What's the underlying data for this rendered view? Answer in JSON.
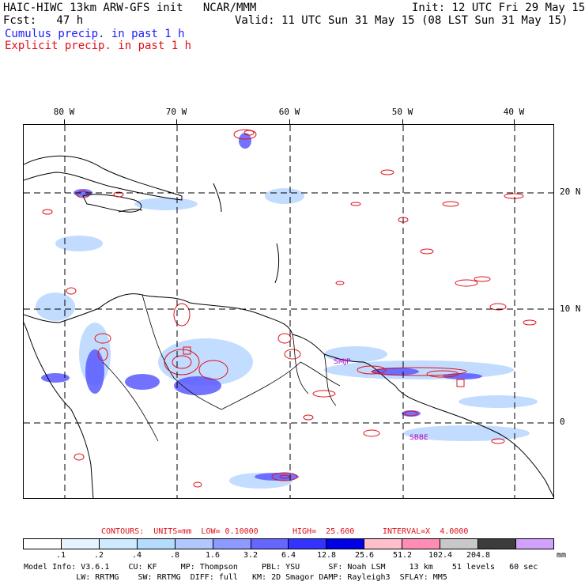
{
  "header": {
    "title": "HAIC-HIWC 13km ARW-GFS init   NCAR/MMM",
    "init": "Init: 12 UTC Fri 29 May 15",
    "fcst": "Fcst:   47 h",
    "valid": "Valid: 11 UTC Sun 31 May 15 (08 LST Sun 31 May 15)",
    "cumulus": "Cumulus precip. in past 1 h",
    "explicit": "Explicit precip. in past 1 h"
  },
  "map": {
    "lon_labels": [
      "80 W",
      "70 W",
      "60 W",
      "50 W",
      "40 W"
    ],
    "lat_labels": [
      "20 N",
      "10 N",
      "0"
    ],
    "station_labels": [
      "SMJP",
      "SBBE"
    ]
  },
  "contours": {
    "label": "CONTOURS:  UNITS=mm  LOW= 0.10000",
    "high": "HIGH=  25.600",
    "interval": "INTERVAL=X  4.0000"
  },
  "scale": {
    "labels": [
      ".1",
      ".2",
      ".4",
      ".8",
      "1.6",
      "3.2",
      "6.4",
      "12.8",
      "25.6",
      "51.2",
      "102.4",
      "204.8"
    ],
    "unit": "mm",
    "colors": [
      "#ffffff",
      "#e6f4ff",
      "#cdeaff",
      "#b3dcff",
      "#b0c8ff",
      "#8c99ff",
      "#6666ff",
      "#3333ff",
      "#0000e6",
      "#ffc0cb",
      "#ff8cb4",
      "#c8c8c8",
      "#3c3c3c",
      "#d2a0ff"
    ]
  },
  "model_info": {
    "line1": "Model Info: V3.6.1    CU: KF     MP: Thompson     PBL: YSU      SF: Noah LSM     13 km    51 levels   60 sec",
    "line2": "           LW: RRTMG    SW: RRTMG  DIFF: full   KM: 2D Smagor DAMP: Rayleigh3  SFLAY: MM5"
  }
}
